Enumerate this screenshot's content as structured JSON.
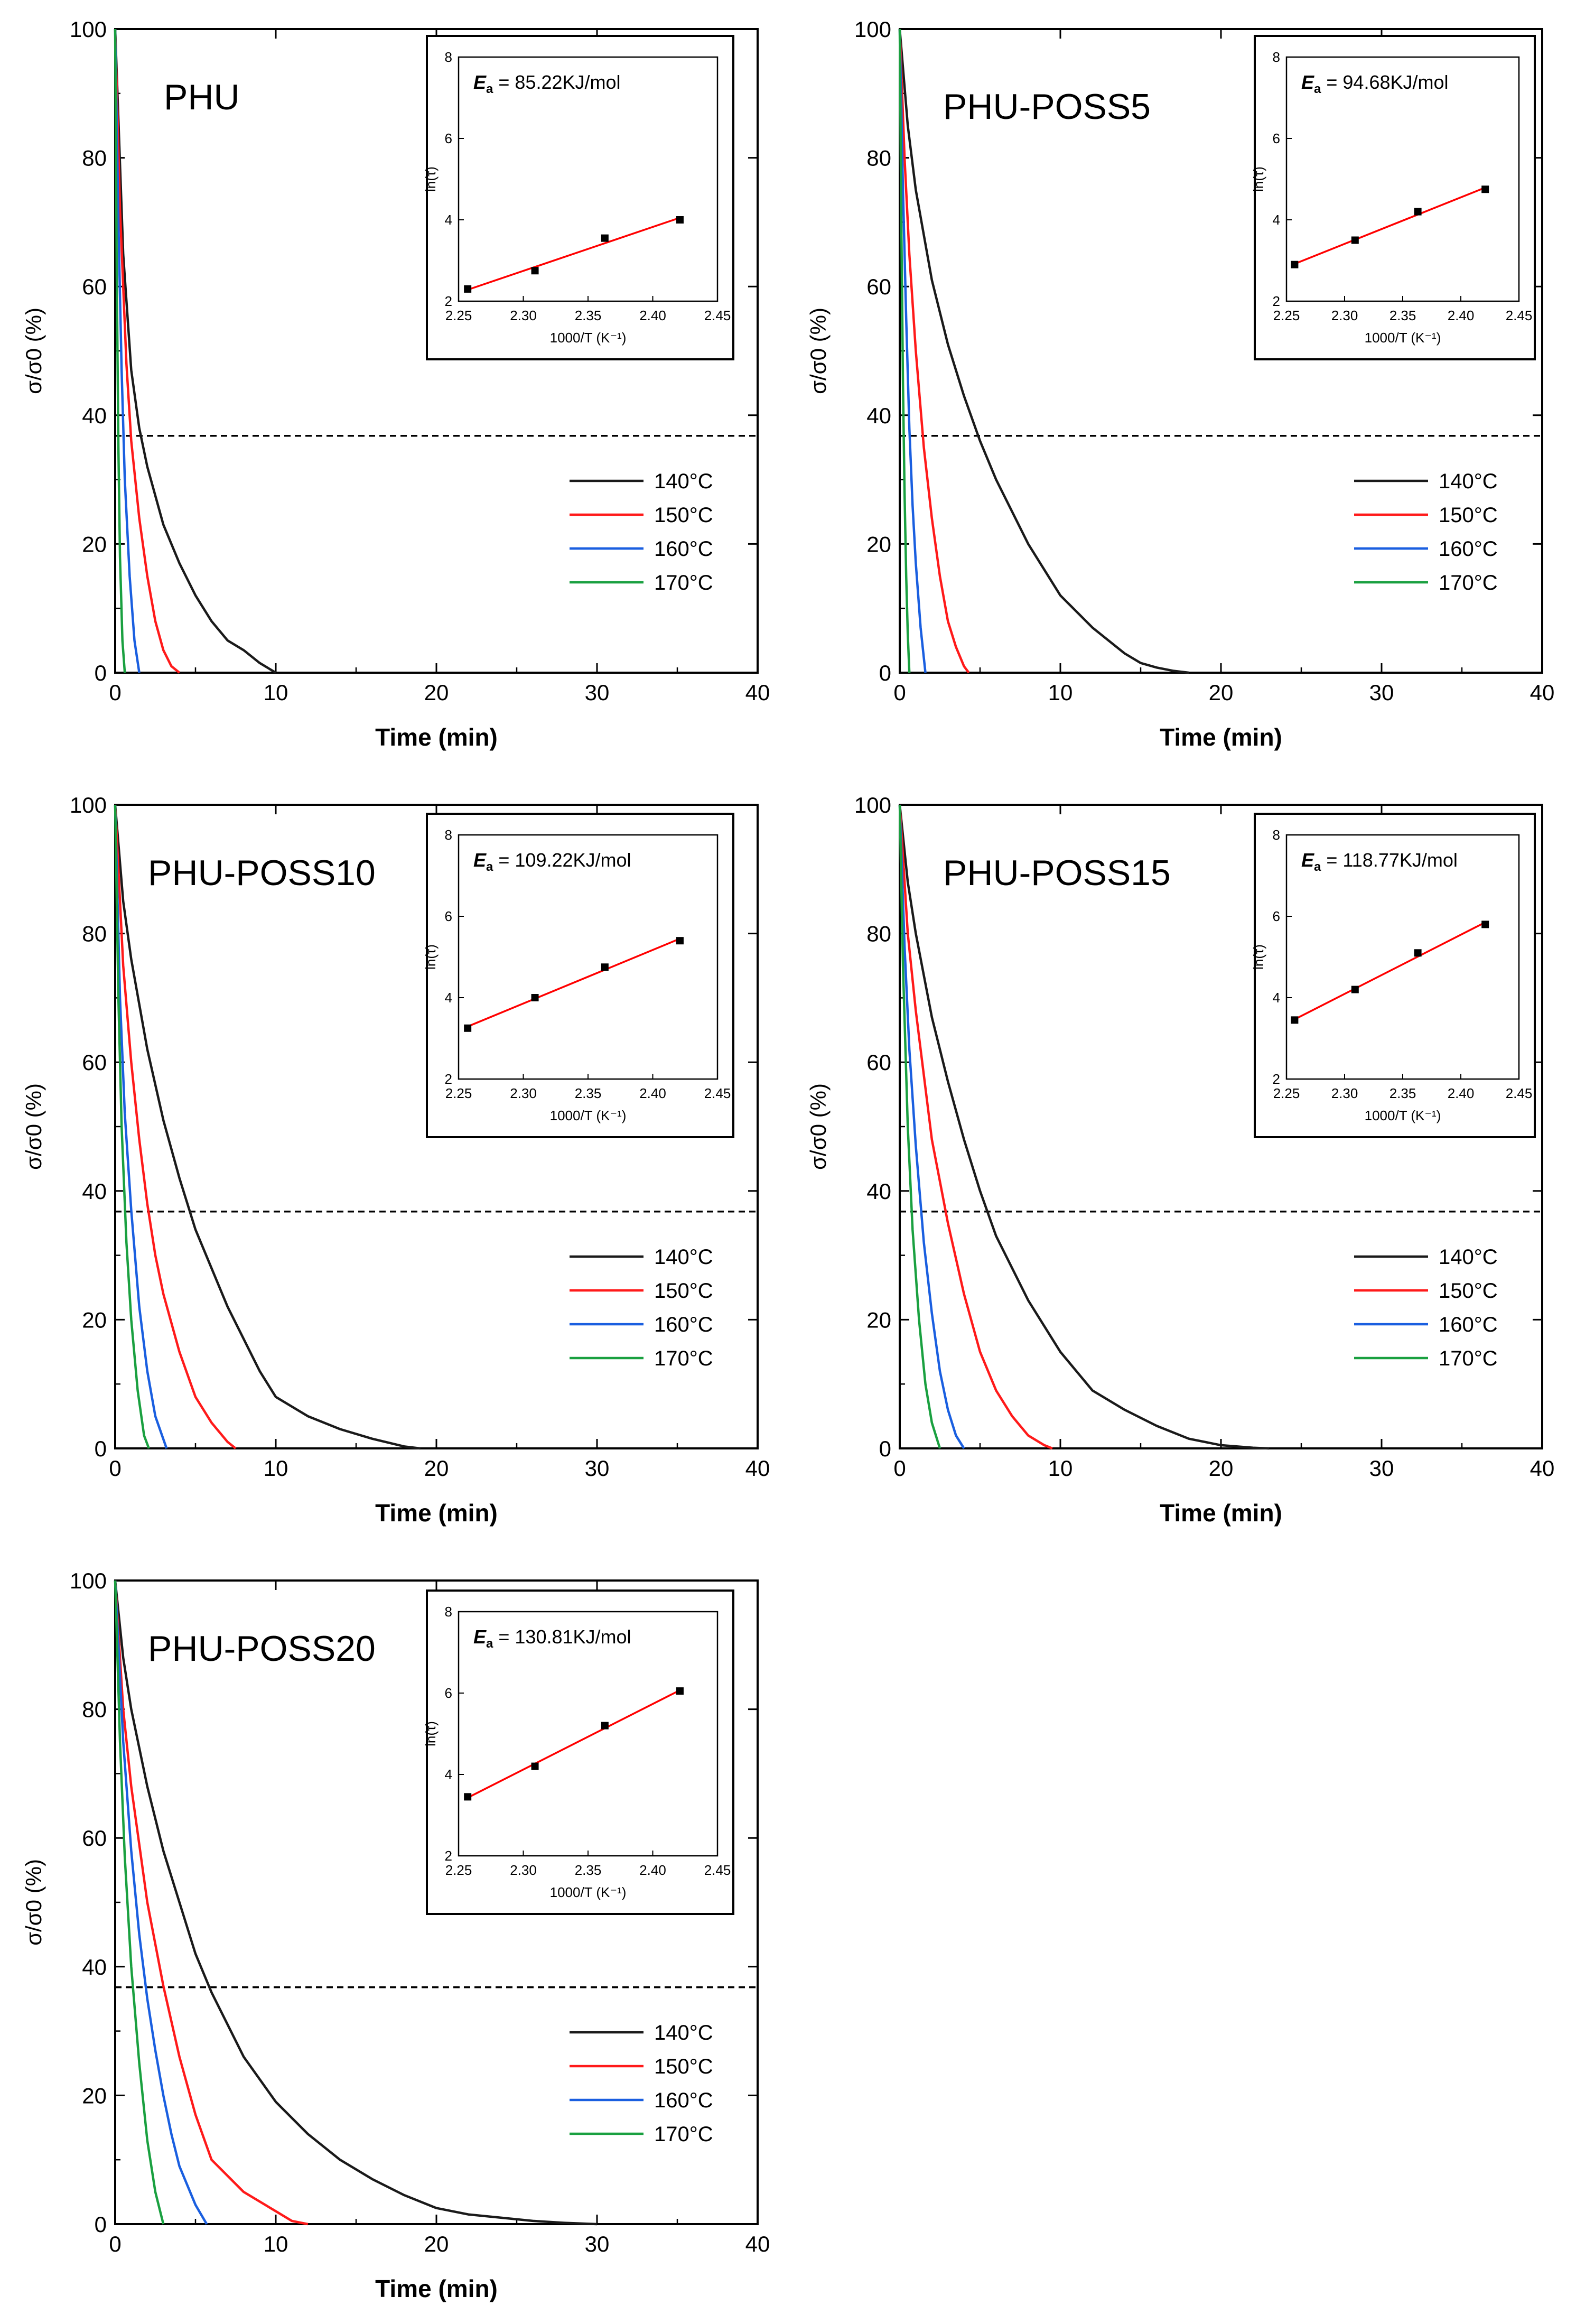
{
  "figure": {
    "colors": {
      "140°C": "#1a1a1a",
      "150°C": "#ff1a1a",
      "160°C": "#1a5fe0",
      "170°C": "#1aa040",
      "fit": "#ff0000",
      "threshold": "#000000"
    },
    "threshold_value": 36.8
  },
  "chart_data": [
    {
      "type": "line",
      "panel_label": "PHU",
      "xlabel": "Time (min)",
      "ylabel": "σ/σ0 (%)",
      "xlim": [
        0,
        40
      ],
      "ylim": [
        0,
        100
      ],
      "xticks": [
        0,
        10,
        20,
        30,
        40
      ],
      "yticks": [
        0,
        20,
        40,
        60,
        80,
        100
      ],
      "threshold": 36.8,
      "series": [
        {
          "name": "140°C",
          "x": [
            0,
            0.5,
            1,
            1.5,
            2,
            3,
            4,
            5,
            6,
            7,
            8,
            9,
            10
          ],
          "y": [
            100,
            65,
            47,
            38,
            32,
            23,
            17,
            12,
            8,
            5,
            3.5,
            1.5,
            0
          ]
        },
        {
          "name": "150°C",
          "x": [
            0,
            0.3,
            0.7,
            1,
            1.5,
            2,
            2.5,
            3,
            3.5,
            4
          ],
          "y": [
            100,
            72,
            48,
            36,
            24,
            15,
            8,
            3.5,
            1,
            0
          ]
        },
        {
          "name": "160°C",
          "x": [
            0,
            0.2,
            0.4,
            0.6,
            0.9,
            1.2,
            1.5
          ],
          "y": [
            100,
            70,
            47,
            30,
            15,
            5,
            0
          ]
        },
        {
          "name": "170°C",
          "x": [
            0,
            0.1,
            0.2,
            0.3,
            0.45,
            0.6
          ],
          "y": [
            100,
            62,
            35,
            18,
            5,
            0
          ]
        }
      ],
      "inset": {
        "xlabel": "1000/T (K⁻¹)",
        "ylabel": "ln(τ)",
        "xlim": [
          2.25,
          2.45
        ],
        "ylim": [
          2,
          8
        ],
        "xticks": [
          "2.25",
          "2.30",
          "2.35",
          "2.40",
          "2.45"
        ],
        "yticks": [
          "2",
          "4",
          "6",
          "8"
        ],
        "points_x": [
          2.257,
          2.309,
          2.363,
          2.421
        ],
        "points_y": [
          2.3,
          2.75,
          3.55,
          4.0
        ],
        "ea_symbol": "E",
        "ea_subscript": "a",
        "ea_value": " = 85.22KJ/mol"
      }
    },
    {
      "type": "line",
      "panel_label": "PHU-POSS5",
      "xlabel": "Time (min)",
      "ylabel": "σ/σ0 (%)",
      "xlim": [
        0,
        40
      ],
      "ylim": [
        0,
        100
      ],
      "xticks": [
        0,
        10,
        20,
        30,
        40
      ],
      "yticks": [
        0,
        20,
        40,
        60,
        80,
        100
      ],
      "threshold": 36.8,
      "series": [
        {
          "name": "140°C",
          "x": [
            0,
            0.5,
            1,
            2,
            3,
            4,
            5,
            6,
            8,
            10,
            12,
            14,
            15,
            16,
            17,
            18
          ],
          "y": [
            100,
            85,
            75,
            61,
            51,
            43,
            36,
            30,
            20,
            12,
            7,
            3,
            1.5,
            0.8,
            0.3,
            0
          ]
        },
        {
          "name": "150°C",
          "x": [
            0,
            0.3,
            0.6,
            1,
            1.5,
            2,
            2.5,
            3,
            3.5,
            4,
            4.3
          ],
          "y": [
            100,
            80,
            65,
            50,
            35,
            24,
            15,
            8,
            4,
            1,
            0
          ]
        },
        {
          "name": "160°C",
          "x": [
            0,
            0.2,
            0.4,
            0.6,
            0.8,
            1,
            1.3,
            1.6
          ],
          "y": [
            100,
            75,
            55,
            38,
            26,
            17,
            7,
            0
          ]
        },
        {
          "name": "170°C",
          "x": [
            0,
            0.1,
            0.2,
            0.3,
            0.4,
            0.5,
            0.6
          ],
          "y": [
            100,
            70,
            45,
            28,
            15,
            6,
            0
          ]
        }
      ],
      "inset": {
        "xlabel": "1000/T (K⁻¹)",
        "ylabel": "ln(τ)",
        "xlim": [
          2.25,
          2.45
        ],
        "ylim": [
          2,
          8
        ],
        "xticks": [
          "2.25",
          "2.30",
          "2.35",
          "2.40",
          "2.45"
        ],
        "yticks": [
          "2",
          "4",
          "6",
          "8"
        ],
        "points_x": [
          2.257,
          2.309,
          2.363,
          2.421
        ],
        "points_y": [
          2.9,
          3.5,
          4.2,
          4.75
        ],
        "ea_symbol": "E",
        "ea_subscript": "a",
        "ea_value": " = 94.68KJ/mol"
      }
    },
    {
      "type": "line",
      "panel_label": "PHU-POSS10",
      "xlabel": "Time (min)",
      "ylabel": "σ/σ0 (%)",
      "xlim": [
        0,
        40
      ],
      "ylim": [
        0,
        100
      ],
      "xticks": [
        0,
        10,
        20,
        30,
        40
      ],
      "yticks": [
        0,
        20,
        40,
        60,
        80,
        100
      ],
      "threshold": 36.8,
      "series": [
        {
          "name": "140°C",
          "x": [
            0,
            0.5,
            1,
            2,
            3,
            4,
            5,
            6,
            7,
            8,
            9,
            10,
            12,
            14,
            16,
            18,
            19
          ],
          "y": [
            100,
            85,
            76,
            62,
            51,
            42,
            34,
            28,
            22,
            17,
            12,
            8,
            5,
            3,
            1.5,
            0.3,
            0
          ]
        },
        {
          "name": "150°C",
          "x": [
            0,
            0.5,
            1,
            1.5,
            2,
            2.5,
            3,
            4,
            5,
            6,
            7,
            7.5
          ],
          "y": [
            100,
            75,
            60,
            48,
            38,
            30,
            24,
            15,
            8,
            4,
            1,
            0
          ]
        },
        {
          "name": "160°C",
          "x": [
            0,
            0.3,
            0.6,
            1,
            1.5,
            2,
            2.5,
            3.2
          ],
          "y": [
            100,
            70,
            52,
            37,
            22,
            12,
            5,
            0
          ]
        },
        {
          "name": "170°C",
          "x": [
            0,
            0.2,
            0.4,
            0.7,
            1,
            1.4,
            1.8,
            2.1
          ],
          "y": [
            100,
            70,
            50,
            32,
            20,
            9,
            2,
            0
          ]
        }
      ],
      "inset": {
        "xlabel": "1000/T (K⁻¹)",
        "ylabel": "ln(τ)",
        "xlim": [
          2.25,
          2.45
        ],
        "ylim": [
          2,
          8
        ],
        "xticks": [
          "2.25",
          "2.30",
          "2.35",
          "2.40",
          "2.45"
        ],
        "yticks": [
          "2",
          "4",
          "6",
          "8"
        ],
        "points_x": [
          2.257,
          2.309,
          2.363,
          2.421
        ],
        "points_y": [
          3.25,
          4.0,
          4.75,
          5.4
        ],
        "ea_symbol": "E",
        "ea_subscript": "a",
        "ea_value": " = 109.22KJ/mol"
      }
    },
    {
      "type": "line",
      "panel_label": "PHU-POSS15",
      "xlabel": "Time (min)",
      "ylabel": "σ/σ0 (%)",
      "xlim": [
        0,
        40
      ],
      "ylim": [
        0,
        100
      ],
      "xticks": [
        0,
        10,
        20,
        30,
        40
      ],
      "yticks": [
        0,
        20,
        40,
        60,
        80,
        100
      ],
      "threshold": 36.8,
      "series": [
        {
          "name": "140°C",
          "x": [
            0,
            0.5,
            1,
            2,
            3,
            4,
            5,
            6,
            8,
            10,
            12,
            14,
            16,
            18,
            20,
            22,
            23
          ],
          "y": [
            100,
            88,
            80,
            67,
            57,
            48,
            40,
            33,
            23,
            15,
            9,
            6,
            3.5,
            1.5,
            0.5,
            0.1,
            0
          ]
        },
        {
          "name": "150°C",
          "x": [
            0,
            0.5,
            1,
            2,
            3,
            4,
            5,
            6,
            7,
            8,
            9,
            9.5
          ],
          "y": [
            100,
            80,
            68,
            48,
            35,
            24,
            15,
            9,
            5,
            2,
            0.5,
            0
          ]
        },
        {
          "name": "160°C",
          "x": [
            0,
            0.3,
            0.6,
            1,
            1.5,
            2,
            2.5,
            3,
            3.5,
            4
          ],
          "y": [
            100,
            78,
            62,
            47,
            32,
            21,
            12,
            6,
            2,
            0
          ]
        },
        {
          "name": "170°C",
          "x": [
            0,
            0.2,
            0.5,
            0.8,
            1.2,
            1.6,
            2,
            2.5
          ],
          "y": [
            100,
            75,
            50,
            34,
            20,
            10,
            4,
            0
          ]
        }
      ],
      "inset": {
        "xlabel": "1000/T (K⁻¹)",
        "ylabel": "ln(τ)",
        "xlim": [
          2.25,
          2.45
        ],
        "ylim": [
          2,
          8
        ],
        "xticks": [
          "2.25",
          "2.30",
          "2.35",
          "2.40",
          "2.45"
        ],
        "yticks": [
          "2",
          "4",
          "6",
          "8"
        ],
        "points_x": [
          2.257,
          2.309,
          2.363,
          2.421
        ],
        "points_y": [
          3.45,
          4.2,
          5.1,
          5.8
        ],
        "ea_symbol": "E",
        "ea_subscript": "a",
        "ea_value": " = 118.77KJ/mol"
      }
    },
    {
      "type": "line",
      "panel_label": "PHU-POSS20",
      "xlabel": "Time (min)",
      "ylabel": "σ/σ0 (%)",
      "xlim": [
        0,
        40
      ],
      "ylim": [
        0,
        100
      ],
      "xticks": [
        0,
        10,
        20,
        30,
        40
      ],
      "yticks": [
        0,
        20,
        40,
        60,
        80,
        100
      ],
      "threshold": 36.8,
      "series": [
        {
          "name": "140°C",
          "x": [
            0,
            0.5,
            1,
            2,
            3,
            4,
            5,
            6,
            8,
            10,
            12,
            14,
            16,
            18,
            20,
            22,
            24,
            26,
            28,
            30
          ],
          "y": [
            100,
            88,
            80,
            68,
            58,
            50,
            42,
            36,
            26,
            19,
            14,
            10,
            7,
            4.5,
            2.5,
            1.5,
            1,
            0.5,
            0.2,
            0
          ]
        },
        {
          "name": "150°C",
          "x": [
            0,
            0.5,
            1,
            2,
            3,
            4,
            5,
            6,
            8,
            10,
            11,
            12
          ],
          "y": [
            100,
            80,
            68,
            50,
            37,
            26,
            17,
            10,
            5,
            2,
            0.5,
            0
          ]
        },
        {
          "name": "160°C",
          "x": [
            0,
            0.5,
            1,
            1.5,
            2,
            2.5,
            3,
            3.5,
            4,
            5,
            5.7
          ],
          "y": [
            100,
            75,
            58,
            45,
            35,
            27,
            20,
            14,
            9,
            3,
            0
          ]
        },
        {
          "name": "170°C",
          "x": [
            0,
            0.3,
            0.6,
            1,
            1.5,
            2,
            2.5,
            3
          ],
          "y": [
            100,
            75,
            57,
            40,
            25,
            13,
            5,
            0
          ]
        }
      ],
      "inset": {
        "xlabel": "1000/T (K⁻¹)",
        "ylabel": "ln(τ)",
        "xlim": [
          2.25,
          2.45
        ],
        "ylim": [
          2,
          8
        ],
        "xticks": [
          "2.25",
          "2.30",
          "2.35",
          "2.40",
          "2.45"
        ],
        "yticks": [
          "2",
          "4",
          "6",
          "8"
        ],
        "points_x": [
          2.257,
          2.309,
          2.363,
          2.421
        ],
        "points_y": [
          3.45,
          4.2,
          5.2,
          6.05
        ],
        "ea_symbol": "E",
        "ea_subscript": "a",
        "ea_value": " = 130.81KJ/mol"
      }
    }
  ]
}
